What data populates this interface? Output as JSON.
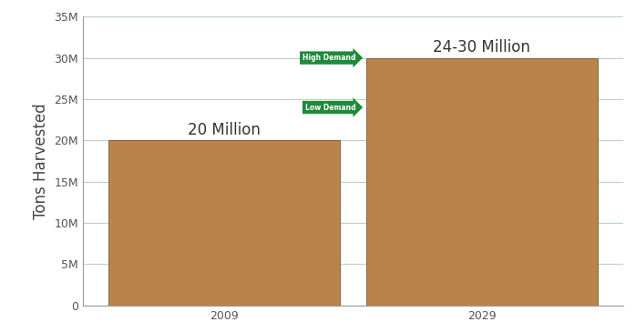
{
  "chart_data": {
    "type": "bar",
    "y_label": "Tons Harvested",
    "categories": [
      "2009",
      "2029"
    ],
    "values": [
      20,
      30
    ],
    "value_labels": [
      "20 Million",
      "24-30 Million"
    ],
    "data_labels": true,
    "color": "#b8844c",
    "ylim": [
      0,
      35
    ],
    "yticks": [
      0,
      {
        "value": 5,
        "label": "5M"
      },
      {
        "value": 10,
        "label": "10M"
      },
      {
        "value": 15,
        "label": "15M"
      },
      {
        "value": 20,
        "label": "20M"
      },
      {
        "value": 25,
        "label": "25M"
      },
      {
        "value": 30,
        "label": "30M"
      },
      {
        "value": 35,
        "label": "35M"
      }
    ],
    "grid": true,
    "annotations": [
      {
        "text": "High Demand",
        "value": 30,
        "color": "#1f8a3b"
      },
      {
        "text": "Low Demand",
        "value": 24,
        "color": "#1f8a3b"
      }
    ]
  }
}
